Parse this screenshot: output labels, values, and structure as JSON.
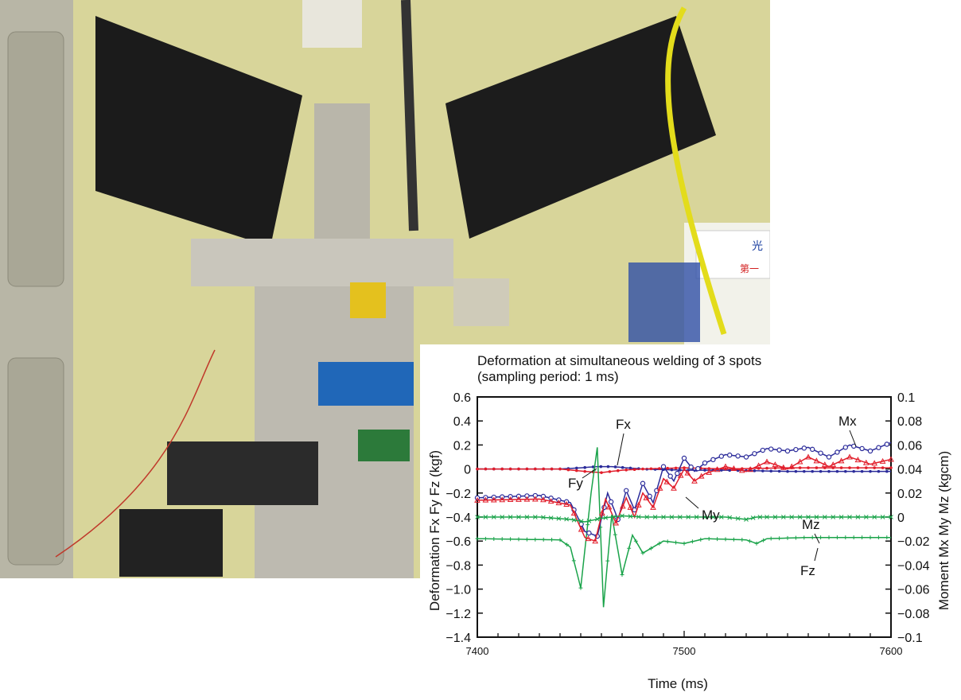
{
  "photo": {
    "label_sign": [
      "光",
      "第一"
    ]
  },
  "chart_data": {
    "type": "line",
    "title": "Deformation at simultaneous welding of 3 spots",
    "subtitle": "(sampling period: 1 ms)",
    "xlabel": "Time (ms)",
    "ylabel": "Deformation Fx Fy Fz (kgf)",
    "y2label": "Moment Mx My Mz (kgcm)",
    "xlim": [
      7400,
      7600
    ],
    "ylim": [
      -1.4,
      0.6
    ],
    "y2lim": [
      -0.1,
      0.1
    ],
    "x_ticks": [
      "7400",
      "7500",
      "7600"
    ],
    "y_ticks": [
      "0.6",
      "0.4",
      "0.2",
      "0",
      "−0.2",
      "−0.4",
      "−0.6",
      "−0.8",
      "−1.0",
      "−1.2",
      "−1.4"
    ],
    "y2_ticks": [
      "0.1",
      "0.08",
      "0.06",
      "0.04",
      "0.02",
      "0",
      "−0.02",
      "−0.04",
      "−0.06",
      "−0.08",
      "−0.1"
    ],
    "grid": false,
    "colors": {
      "Fx": "#2b2b9a",
      "Fy": "#e11d2a",
      "Fz": "#1aa34a",
      "Mx": "#2b2b9a",
      "My": "#e11d2a",
      "Mz": "#1aa34a"
    },
    "series": [
      {
        "name": "Fx",
        "axis": "left",
        "marker": "dot",
        "x": [
          7400,
          7440,
          7450,
          7458,
          7465,
          7472,
          7480,
          7500,
          7520,
          7550,
          7600
        ],
        "y": [
          0.0,
          0.0,
          0.01,
          0.02,
          0.02,
          0.01,
          0.0,
          -0.01,
          -0.01,
          -0.02,
          -0.02
        ]
      },
      {
        "name": "Fy",
        "axis": "left",
        "marker": "dot",
        "x": [
          7400,
          7440,
          7452,
          7460,
          7470,
          7480,
          7500,
          7520,
          7550,
          7600
        ],
        "y": [
          0.0,
          0.0,
          -0.02,
          -0.03,
          -0.01,
          0.0,
          0.01,
          0.0,
          0.01,
          0.01
        ]
      },
      {
        "name": "Fz",
        "axis": "left",
        "marker": "plus",
        "x": [
          7400,
          7440,
          7445,
          7450,
          7455,
          7458,
          7461,
          7465,
          7470,
          7475,
          7480,
          7490,
          7500,
          7510,
          7530,
          7535,
          7540,
          7560,
          7580,
          7600
        ],
        "y": [
          -0.58,
          -0.59,
          -0.65,
          -0.99,
          -0.2,
          0.18,
          -1.15,
          -0.38,
          -0.88,
          -0.55,
          -0.7,
          -0.6,
          -0.62,
          -0.58,
          -0.59,
          -0.62,
          -0.58,
          -0.57,
          -0.57,
          -0.57
        ]
      },
      {
        "name": "Mx",
        "axis": "right",
        "marker": "circle",
        "x": [
          7400,
          7430,
          7445,
          7452,
          7458,
          7463,
          7468,
          7472,
          7476,
          7480,
          7485,
          7490,
          7495,
          7500,
          7505,
          7510,
          7520,
          7530,
          7540,
          7550,
          7560,
          7570,
          7580,
          7590,
          7600
        ],
        "y": [
          0.016,
          0.018,
          0.012,
          -0.012,
          -0.016,
          0.02,
          -0.002,
          0.022,
          0.006,
          0.028,
          0.012,
          0.042,
          0.03,
          0.049,
          0.038,
          0.045,
          0.052,
          0.05,
          0.057,
          0.055,
          0.058,
          0.05,
          0.06,
          0.055,
          0.062
        ]
      },
      {
        "name": "My",
        "axis": "right",
        "marker": "triangle",
        "x": [
          7400,
          7430,
          7445,
          7452,
          7457,
          7462,
          7467,
          7472,
          7476,
          7480,
          7485,
          7490,
          7495,
          7500,
          7505,
          7510,
          7520,
          7530,
          7540,
          7550,
          7560,
          7570,
          7580,
          7590,
          7600
        ],
        "y": [
          0.014,
          0.015,
          0.01,
          -0.017,
          -0.02,
          0.015,
          -0.005,
          0.016,
          0.0,
          0.02,
          0.008,
          0.032,
          0.024,
          0.04,
          0.03,
          0.036,
          0.042,
          0.038,
          0.046,
          0.04,
          0.05,
          0.042,
          0.05,
          0.044,
          0.048
        ]
      },
      {
        "name": "Mz",
        "axis": "right",
        "marker": "x",
        "x": [
          7400,
          7430,
          7445,
          7452,
          7460,
          7470,
          7480,
          7500,
          7520,
          7530,
          7535,
          7540,
          7560,
          7580,
          7600
        ],
        "y": [
          0.0,
          0.0,
          -0.002,
          -0.004,
          -0.001,
          0.001,
          0.0,
          0.0,
          0.0,
          -0.002,
          0.0,
          0.0,
          0.0,
          0.0,
          0.0
        ]
      }
    ],
    "annotations": [
      "Fx",
      "Fy",
      "Fz",
      "Mx",
      "My",
      "Mz"
    ]
  }
}
